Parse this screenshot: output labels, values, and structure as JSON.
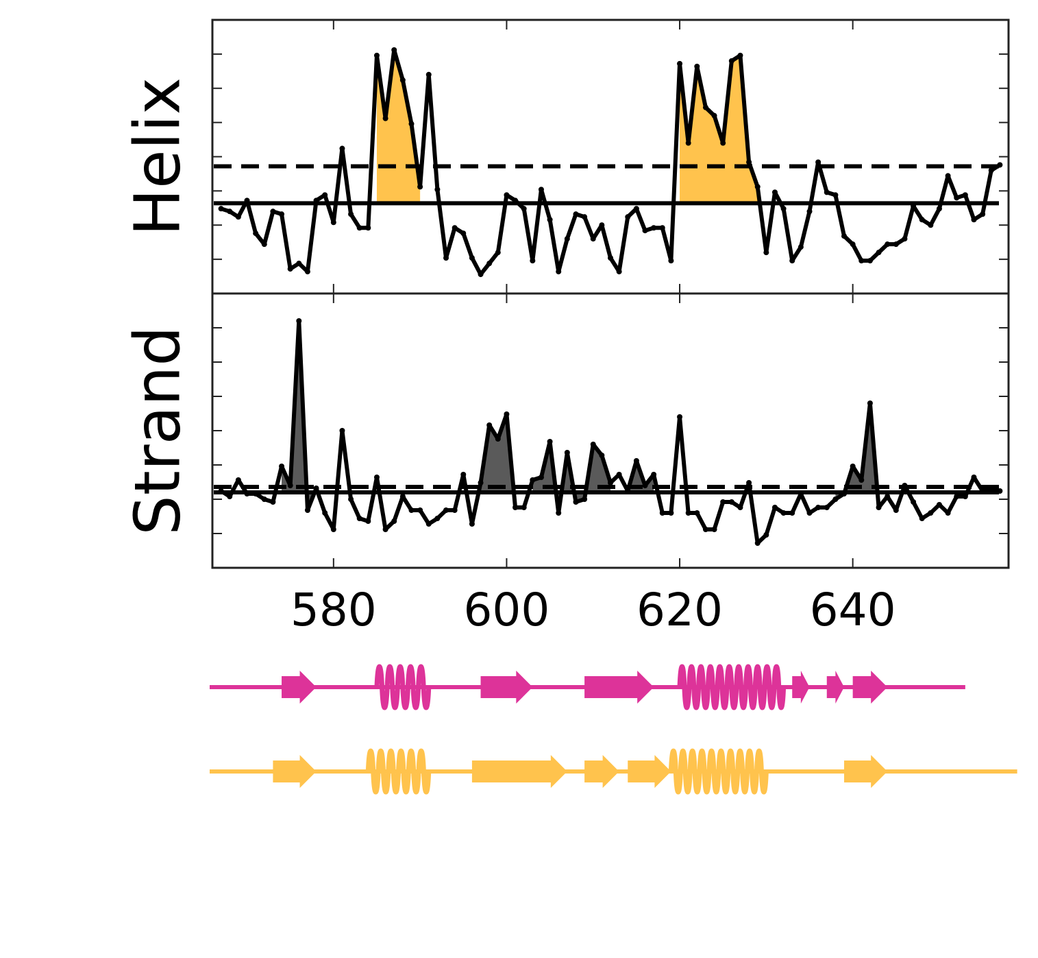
{
  "colors": {
    "helix_fill": "#ffc34d",
    "strand_fill": "#5a5a5a",
    "line": "#000000",
    "track_magenta": "#dd3399",
    "track_yellow": "#ffc34d"
  },
  "chart_data": [
    {
      "type": "line",
      "ylabel": "Helix",
      "xlabel": "",
      "xlim": [
        566,
        658
      ],
      "ylim": [
        0,
        1
      ],
      "x_ticks": [
        580,
        600,
        620,
        640
      ],
      "x_tick_labels": [
        "",
        "",
        "",
        ""
      ],
      "y_tick_labels_shown": false,
      "grid": false,
      "solid_threshold": 0.33,
      "dashed_threshold": 0.465,
      "fill_color": "helix_fill",
      "fill_segments": [
        [
          585,
          590
        ],
        [
          620,
          629
        ]
      ],
      "x": [
        567,
        568,
        569,
        570,
        571,
        572,
        573,
        574,
        575,
        576,
        577,
        578,
        579,
        580,
        581,
        582,
        583,
        584,
        585,
        586,
        587,
        588,
        589,
        590,
        591,
        592,
        593,
        594,
        595,
        596,
        597,
        598,
        599,
        600,
        601,
        602,
        603,
        604,
        605,
        606,
        607,
        608,
        609,
        610,
        611,
        612,
        613,
        614,
        615,
        616,
        617,
        618,
        619,
        620,
        621,
        622,
        623,
        624,
        625,
        626,
        627,
        628,
        629,
        630,
        631,
        632,
        633,
        634,
        635,
        636,
        637,
        638,
        639,
        640,
        641,
        642,
        643,
        644,
        645,
        646,
        647,
        648,
        649,
        650,
        651,
        652,
        653,
        654,
        655,
        656,
        657
      ],
      "values": [
        0.31,
        0.3,
        0.28,
        0.34,
        0.22,
        0.18,
        0.3,
        0.29,
        0.09,
        0.11,
        0.08,
        0.34,
        0.36,
        0.26,
        0.53,
        0.29,
        0.24,
        0.24,
        0.87,
        0.64,
        0.89,
        0.78,
        0.62,
        0.39,
        0.8,
        0.38,
        0.13,
        0.24,
        0.22,
        0.13,
        0.07,
        0.11,
        0.15,
        0.36,
        0.34,
        0.31,
        0.12,
        0.38,
        0.27,
        0.08,
        0.2,
        0.29,
        0.28,
        0.2,
        0.25,
        0.13,
        0.08,
        0.28,
        0.31,
        0.23,
        0.24,
        0.24,
        0.12,
        0.84,
        0.55,
        0.83,
        0.68,
        0.65,
        0.55,
        0.85,
        0.87,
        0.48,
        0.39,
        0.15,
        0.37,
        0.31,
        0.12,
        0.17,
        0.3,
        0.48,
        0.37,
        0.36,
        0.21,
        0.18,
        0.12,
        0.12,
        0.15,
        0.18,
        0.18,
        0.2,
        0.32,
        0.27,
        0.25,
        0.31,
        0.43,
        0.35,
        0.36,
        0.27,
        0.29,
        0.45,
        0.47
      ]
    },
    {
      "type": "line",
      "ylabel": "Strand",
      "xlabel": "",
      "xlim": [
        566,
        658
      ],
      "ylim": [
        0,
        1
      ],
      "x_ticks": [
        580,
        600,
        620,
        640
      ],
      "x_tick_labels": [
        "580",
        "600",
        "620",
        "640"
      ],
      "y_tick_labels_shown": false,
      "grid": false,
      "solid_threshold": 0.275,
      "dashed_threshold": 0.295,
      "fill_color": "strand_fill",
      "fill_segments": [
        [
          574,
          578
        ],
        [
          597,
          601
        ],
        [
          603,
          612
        ],
        [
          614,
          617
        ],
        [
          638,
          643
        ]
      ],
      "x": [
        567,
        568,
        569,
        570,
        571,
        572,
        573,
        574,
        575,
        576,
        577,
        578,
        579,
        580,
        581,
        582,
        583,
        584,
        585,
        586,
        587,
        588,
        589,
        590,
        591,
        592,
        593,
        594,
        595,
        596,
        597,
        598,
        599,
        600,
        601,
        602,
        603,
        604,
        605,
        606,
        607,
        608,
        609,
        610,
        611,
        612,
        613,
        614,
        615,
        616,
        617,
        618,
        619,
        620,
        621,
        622,
        623,
        624,
        625,
        626,
        627,
        628,
        629,
        630,
        631,
        632,
        633,
        634,
        635,
        636,
        637,
        638,
        639,
        640,
        641,
        642,
        643,
        644,
        645,
        646,
        647,
        648,
        649,
        650,
        651,
        652,
        653,
        654,
        655,
        656,
        657
      ],
      "values": [
        0.28,
        0.26,
        0.32,
        0.27,
        0.27,
        0.25,
        0.24,
        0.37,
        0.3,
        0.9,
        0.21,
        0.29,
        0.2,
        0.14,
        0.5,
        0.25,
        0.18,
        0.17,
        0.33,
        0.14,
        0.17,
        0.26,
        0.21,
        0.21,
        0.16,
        0.18,
        0.21,
        0.21,
        0.34,
        0.16,
        0.31,
        0.52,
        0.47,
        0.56,
        0.22,
        0.22,
        0.32,
        0.33,
        0.46,
        0.2,
        0.42,
        0.24,
        0.25,
        0.45,
        0.41,
        0.31,
        0.34,
        0.28,
        0.39,
        0.3,
        0.34,
        0.2,
        0.2,
        0.55,
        0.2,
        0.2,
        0.14,
        0.14,
        0.24,
        0.24,
        0.22,
        0.31,
        0.09,
        0.12,
        0.22,
        0.2,
        0.2,
        0.27,
        0.2,
        0.22,
        0.22,
        0.25,
        0.27,
        0.37,
        0.32,
        0.6,
        0.22,
        0.26,
        0.21,
        0.3,
        0.24,
        0.18,
        0.2,
        0.23,
        0.2,
        0.26,
        0.26,
        0.33,
        0.28,
        0.28,
        0.28
      ]
    }
  ],
  "tracks": [
    {
      "color": "track_magenta",
      "elements": [
        {
          "type": "strand",
          "start": 574,
          "end": 578
        },
        {
          "type": "helix",
          "start": 585,
          "end": 591
        },
        {
          "type": "strand",
          "start": 597,
          "end": 603
        },
        {
          "type": "strand",
          "start": 609,
          "end": 617
        },
        {
          "type": "helix",
          "start": 620,
          "end": 632
        },
        {
          "type": "strand",
          "start": 633,
          "end": 635
        },
        {
          "type": "strand",
          "start": 637,
          "end": 639
        },
        {
          "type": "strand",
          "start": 640,
          "end": 644
        }
      ],
      "line_start": 566,
      "line_end": 653
    },
    {
      "color": "track_yellow",
      "elements": [
        {
          "type": "strand",
          "start": 573,
          "end": 578
        },
        {
          "type": "helix",
          "start": 584,
          "end": 591
        },
        {
          "type": "strand",
          "start": 596,
          "end": 607
        },
        {
          "type": "strand",
          "start": 609,
          "end": 613
        },
        {
          "type": "strand",
          "start": 614,
          "end": 619
        },
        {
          "type": "helix",
          "start": 619,
          "end": 630
        },
        {
          "type": "strand",
          "start": 639,
          "end": 644
        }
      ],
      "line_start": 566,
      "line_end": 659
    }
  ]
}
